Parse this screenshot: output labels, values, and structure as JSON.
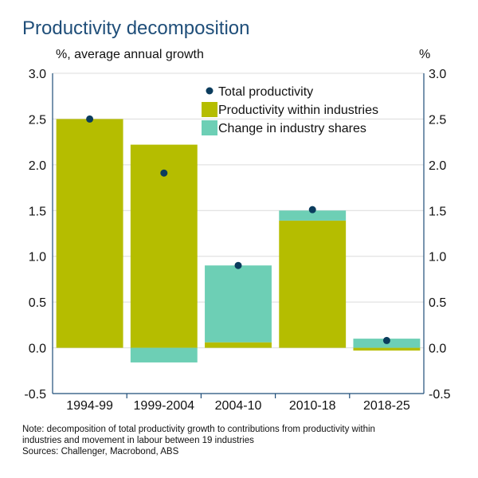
{
  "header": {
    "title": "Productivity decomposition",
    "left_unit": "%, average annual growth",
    "right_unit": "%"
  },
  "notes": {
    "line1": "Note: decomposition of total productivity growth to contributions from productivity within",
    "line2": "industries and movement in labour between 19 industries",
    "line3": "Sources: Challenger, Macrobond, ABS"
  },
  "colors": {
    "within": "#b5bd00",
    "shares": "#6dcfb5",
    "total": "#0b3c5d",
    "axis": "#1f4e79",
    "grid": "#dcdcdc"
  },
  "chart_data": {
    "type": "bar",
    "stacked": true,
    "categories": [
      "1994-99",
      "1999-2004",
      "2004-10",
      "2010-18",
      "2018-25"
    ],
    "series": [
      {
        "name": "Productivity within industries",
        "kind": "bar",
        "color": "#b5bd00",
        "values": [
          2.5,
          2.22,
          0.06,
          1.39,
          -0.03
        ]
      },
      {
        "name": "Change in industry shares",
        "kind": "bar",
        "color": "#6dcfb5",
        "values": [
          0.0,
          -0.16,
          0.84,
          0.11,
          0.1
        ]
      },
      {
        "name": "Total productivity",
        "kind": "point",
        "color": "#0b3c5d",
        "values": [
          2.5,
          1.91,
          0.9,
          1.51,
          0.08
        ]
      }
    ],
    "ylim": [
      -0.5,
      3.0
    ],
    "yticks": [
      "-0.5",
      "0.0",
      "0.5",
      "1.0",
      "1.5",
      "2.0",
      "2.5",
      "3.0"
    ],
    "ytick_values": [
      -0.5,
      0.0,
      0.5,
      1.0,
      1.5,
      2.0,
      2.5,
      3.0
    ],
    "legend": {
      "position": "top-right",
      "items": [
        "Total productivity",
        "Productivity within industries",
        "Change in industry shares"
      ]
    },
    "grid": true,
    "xlabel": "",
    "ylabel": ""
  }
}
